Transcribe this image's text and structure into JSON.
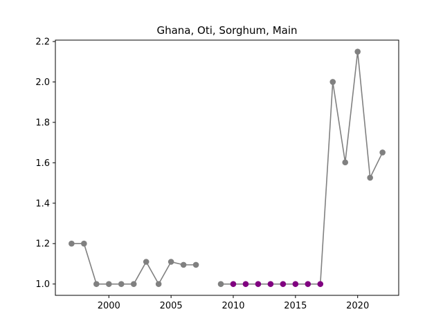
{
  "chart_data": {
    "type": "line",
    "title": "Ghana, Oti, Sorghum, Main",
    "xlabel": "",
    "ylabel": "",
    "xlim": [
      1995.7,
      2023.3
    ],
    "ylim": [
      0.944,
      2.207
    ],
    "grid": false,
    "x_ticks": [
      2000,
      2005,
      2010,
      2015,
      2020
    ],
    "y_ticks": [
      1.0,
      1.2,
      1.4,
      1.6,
      1.8,
      2.0,
      2.2
    ],
    "x_tick_labels": [
      "2000",
      "2005",
      "2010",
      "2015",
      "2020"
    ],
    "y_tick_labels": [
      "1.0",
      "1.2",
      "1.4",
      "1.6",
      "1.8",
      "2.0",
      "2.2"
    ],
    "line_color": "#808080",
    "highlight_color": "#800080",
    "series": [
      {
        "segments": [
          {
            "x": [
              1997,
              1998,
              1999,
              2000,
              2001,
              2002,
              2003,
              2004,
              2005,
              2006,
              2007
            ],
            "y": [
              1.2,
              1.2,
              1.0,
              1.0,
              1.0,
              1.0,
              1.11,
              1.0,
              1.11,
              1.095,
              1.095
            ]
          },
          {
            "x": [
              2009,
              2010,
              2011,
              2012,
              2013,
              2014,
              2015,
              2016,
              2017,
              2018,
              2019,
              2020,
              2021,
              2022
            ],
            "y": [
              1.0,
              1.0,
              1.0,
              1.0,
              1.0,
              1.0,
              1.0,
              1.0,
              1.0,
              2.0,
              1.602,
              2.15,
              1.526,
              1.651
            ]
          }
        ],
        "highlight_x": [
          2010,
          2011,
          2012,
          2013,
          2014,
          2015,
          2016,
          2017
        ]
      }
    ]
  }
}
